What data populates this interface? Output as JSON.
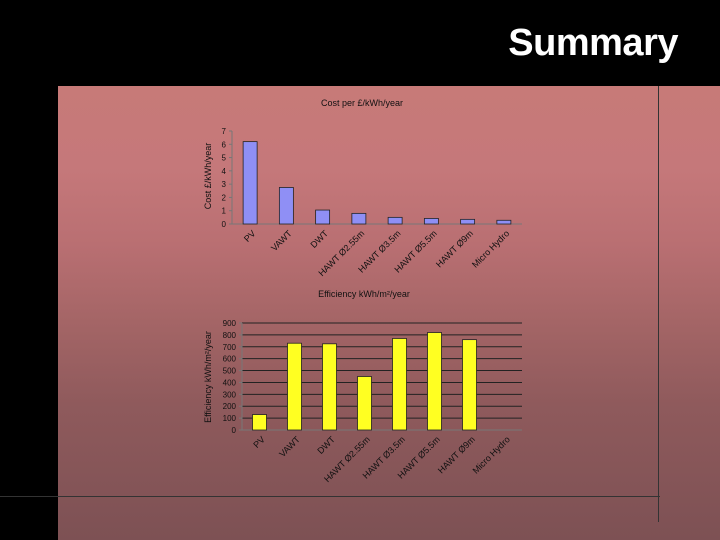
{
  "slide": {
    "title": "Summary"
  },
  "chart_data": [
    {
      "type": "bar",
      "title": "Cost per £/kWh/year",
      "xlabel": "",
      "ylabel": "Cost £/kWh/year",
      "categories": [
        "PV",
        "VAWT",
        "DWT",
        "HAWT Ø2.55m",
        "HAWT Ø3.5m",
        "HAWT Ø5.5m",
        "HAWT Ø9m",
        "Micro Hydro"
      ],
      "values": [
        6.2,
        2.75,
        1.05,
        0.8,
        0.5,
        0.42,
        0.35,
        0.28
      ],
      "ylim": [
        0,
        7
      ],
      "yticks": [
        "0",
        "1",
        "2",
        "3",
        "4",
        "5",
        "6",
        "7"
      ],
      "bar_color": "#8f8ff5",
      "grid": false
    },
    {
      "type": "bar",
      "title": "Efficiency  kWh/m²/year",
      "xlabel": "",
      "ylabel": "Efficiency kWh/m²/year",
      "categories": [
        "PV",
        "VAWT",
        "DWT",
        "HAWT Ø2.55m",
        "HAWT Ø3.5m",
        "HAWT Ø5.5m",
        "HAWT Ø9m",
        "Micro Hydro"
      ],
      "values": [
        130,
        730,
        725,
        450,
        770,
        820,
        760,
        0
      ],
      "ylim": [
        0,
        900
      ],
      "yticks": [
        "0",
        "100",
        "200",
        "300",
        "400",
        "500",
        "600",
        "700",
        "800",
        "900"
      ],
      "bar_color": "#ffff22",
      "grid": true
    }
  ]
}
